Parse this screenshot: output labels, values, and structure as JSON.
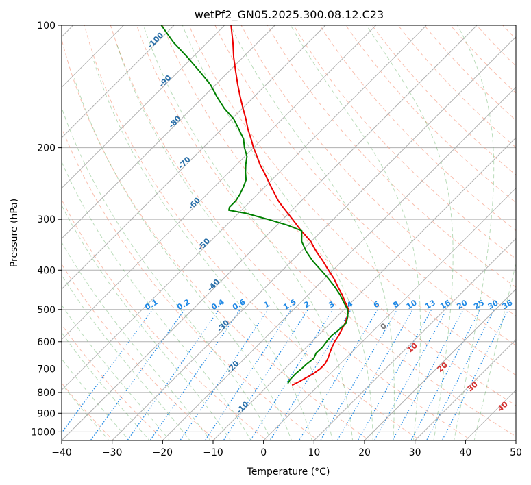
{
  "chart_data": {
    "type": "line",
    "subtype": "skew-T log-P diagram",
    "title": "wetPf2_GN05.2025.300.08.12.C23",
    "xlabel": "Temperature (°C)",
    "ylabel": "Pressure (hPa)",
    "xlim": [
      -40,
      50
    ],
    "ylim_pressure": [
      1050,
      100
    ],
    "x_ticks": [
      -40,
      -30,
      -20,
      -10,
      0,
      10,
      20,
      30,
      40,
      50
    ],
    "x_tick_labels": [
      "−40",
      "−30",
      "−20",
      "−10",
      "0",
      "10",
      "20",
      "30",
      "40",
      "50"
    ],
    "y_ticks": [
      100,
      200,
      300,
      400,
      500,
      600,
      700,
      800,
      900,
      1000
    ],
    "y_tick_labels": [
      "100",
      "200",
      "300",
      "400",
      "500",
      "600",
      "700",
      "800",
      "900",
      "1000"
    ],
    "isotherm_labels": [
      "-100",
      "-90",
      "-80",
      "-70",
      "-60",
      "-50",
      "-40",
      "-30",
      "-20",
      "-10"
    ],
    "mixing_ratio_labels": [
      "0.1",
      "0.2",
      "0.4",
      "0.6",
      "1",
      "1.5",
      "2",
      "3",
      "4",
      "6",
      "8",
      "10",
      "13",
      "16",
      "20",
      "25",
      "30",
      "36"
    ],
    "mixing_ratio_values": [
      0.1,
      0.2,
      0.4,
      0.6,
      1,
      1.5,
      2,
      3,
      4,
      6,
      8,
      10,
      13,
      16,
      20,
      25,
      30,
      36
    ],
    "moist_adiabat_labels": [
      "0",
      "10",
      "20",
      "30",
      "40"
    ],
    "series": [
      {
        "name": "Temperature",
        "color": "#ee0000",
        "pressure": [
          768,
          750,
          720,
          700,
          680,
          660,
          640,
          620,
          600,
          580,
          560,
          540,
          520,
          500,
          480,
          460,
          440,
          420,
          400,
          380,
          360,
          340,
          320,
          300,
          290,
          280,
          270,
          260,
          250,
          240,
          230,
          220,
          210,
          200,
          190,
          180,
          170,
          160,
          150,
          140,
          130,
          120,
          110,
          100
        ],
        "temperature": [
          -5.3,
          -4.5,
          -3.4,
          -3.0,
          -3.0,
          -3.5,
          -4.2,
          -4.9,
          -5.5,
          -5.9,
          -6.5,
          -7.1,
          -8.0,
          -9.1,
          -11.2,
          -13.3,
          -15.7,
          -18.1,
          -20.9,
          -23.8,
          -27.0,
          -30.1,
          -34.1,
          -38.1,
          -40.2,
          -42.4,
          -44.6,
          -46.6,
          -48.7,
          -50.8,
          -53.0,
          -55.4,
          -57.6,
          -60.0,
          -62.3,
          -64.8,
          -67.2,
          -69.9,
          -72.7,
          -75.6,
          -78.6,
          -81.8,
          -85.0,
          -88.7
        ]
      },
      {
        "name": "Dewpoint",
        "color": "#008000",
        "pressure": [
          760,
          745,
          720,
          700,
          680,
          660,
          640,
          620,
          600,
          580,
          560,
          540,
          520,
          500,
          480,
          460,
          440,
          420,
          400,
          380,
          360,
          340,
          320,
          310,
          300,
          290,
          285,
          280,
          270,
          260,
          250,
          240,
          230,
          220,
          210,
          200,
          190,
          180,
          170,
          160,
          150,
          140,
          130,
          120,
          110,
          100
        ],
        "temperature": [
          -6.5,
          -6.8,
          -6.9,
          -6.7,
          -6.6,
          -6.3,
          -6.9,
          -6.8,
          -7.1,
          -7.3,
          -7.0,
          -6.9,
          -7.9,
          -9.3,
          -11.5,
          -13.7,
          -16.3,
          -19.2,
          -22.4,
          -25.8,
          -29.0,
          -31.9,
          -34.0,
          -38.0,
          -43.0,
          -48.5,
          -52.5,
          -53.0,
          -53.0,
          -53.5,
          -54.2,
          -55.1,
          -56.7,
          -58.2,
          -59.6,
          -61.8,
          -63.8,
          -66.6,
          -69.6,
          -73.6,
          -77.3,
          -81.0,
          -85.7,
          -90.9,
          -96.8,
          -102.5
        ]
      }
    ]
  }
}
